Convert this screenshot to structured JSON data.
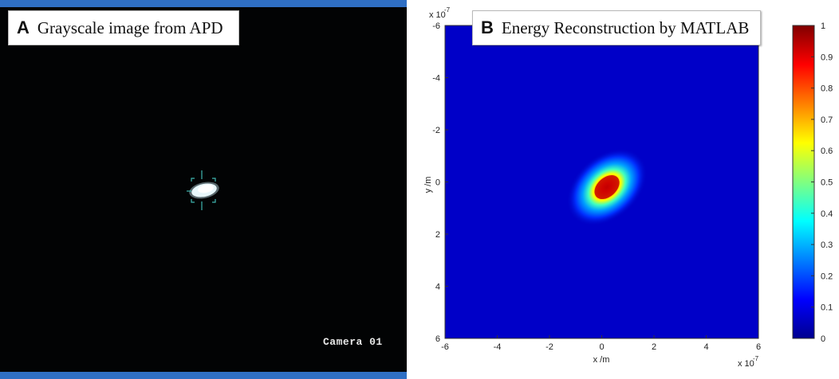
{
  "panel_a": {
    "letter": "A",
    "title": "Grayscale image from APD",
    "camera_label": "Camera 01"
  },
  "panel_b": {
    "letter": "B",
    "title": "Energy Reconstruction by MATLAB"
  },
  "colors": {
    "frame_bar": "#2f6fc4",
    "background_low": "#00008f",
    "peak": "#800000"
  },
  "chart_data": {
    "type": "heatmap",
    "title": "Energy Reconstruction by MATLAB",
    "xlabel": "x /m",
    "ylabel": "y /m",
    "x_exponent_label": "x 10",
    "x_exponent": "-7",
    "y_exponent_label": "x 10",
    "y_exponent": "-7",
    "xlim": [
      -6,
      6
    ],
    "ylim": [
      -6,
      6
    ],
    "y_reversed": true,
    "xticks": [
      -6,
      -4,
      -2,
      0,
      2,
      4,
      6
    ],
    "yticks": [
      -6,
      -4,
      -2,
      0,
      2,
      4,
      6
    ],
    "colorbar": {
      "range": [
        0,
        1
      ],
      "ticks": [
        "0",
        "0.1",
        "0.2",
        "0.3",
        "0.4",
        "0.5",
        "0.6",
        "0.7",
        "0.8",
        "0.9",
        "1"
      ],
      "colormap": "jet"
    },
    "peak": {
      "x": 0.2,
      "y": 0.2,
      "value": 1.0
    },
    "background_value": 0.0
  }
}
